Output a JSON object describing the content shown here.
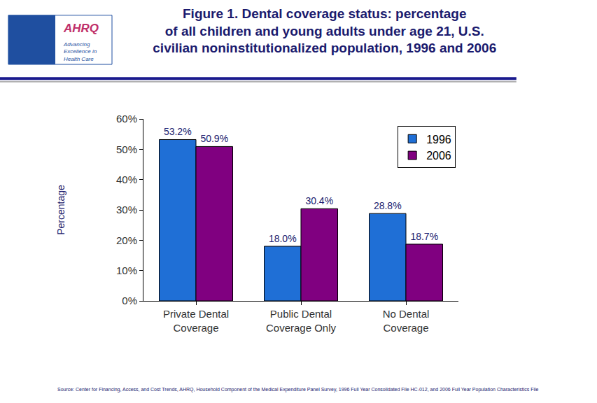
{
  "chart_data": {
    "type": "bar",
    "title": "Figure 1. Dental coverage status: percentage\nof all children and young adults under age 21, U.S.\ncivilian noninstitutionalized population, 1996 and 2006",
    "categories": [
      "Private Dental Coverage",
      "Public Dental Coverage Only",
      "No Dental Coverage"
    ],
    "series": [
      {
        "name": "1996",
        "color": "#1f6fd6",
        "values": [
          53.2,
          18.0,
          28.8
        ],
        "value_labels": [
          "53.2%",
          "18.0%",
          "28.8%"
        ]
      },
      {
        "name": "2006",
        "color": "#800080",
        "values": [
          50.9,
          30.4,
          18.7
        ],
        "value_labels": [
          "50.9%",
          "30.4%",
          "18.7%"
        ]
      }
    ],
    "y_label": "Percentage",
    "ylim": [
      0,
      60
    ],
    "yticks": [
      {
        "value": 0,
        "label": "0%"
      },
      {
        "value": 10,
        "label": "10%"
      },
      {
        "value": 20,
        "label": "20%"
      },
      {
        "value": 30,
        "label": "30%"
      },
      {
        "value": 40,
        "label": "40%"
      },
      {
        "value": 50,
        "label": "50%"
      },
      {
        "value": 60,
        "label": "60%"
      }
    ],
    "grid": false,
    "legend": "top-right",
    "data_labels": true,
    "annotations": [
      "Source: Center for Financing, Access, and Cost Trends, AHRQ, Household Component of the Medical Expenditure Panel Survey, 1996 Full Year Consolidated File HC-012, and 2006 Full Year Population Characteristics File",
      "AHRQ",
      "Advancing\nExcellence in\nHealth Care"
    ]
  }
}
